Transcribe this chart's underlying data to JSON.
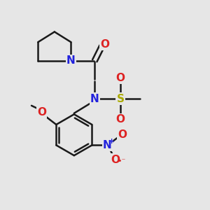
{
  "background_color": "#e6e6e6",
  "bond_color": "#1a1a1a",
  "bond_width": 1.8,
  "atom_colors": {
    "C": "#1a1a1a",
    "N": "#2222dd",
    "O": "#dd2222",
    "S": "#aaaa00",
    "H": "#1a1a1a"
  },
  "font_size_atom": 11,
  "font_size_small": 9
}
